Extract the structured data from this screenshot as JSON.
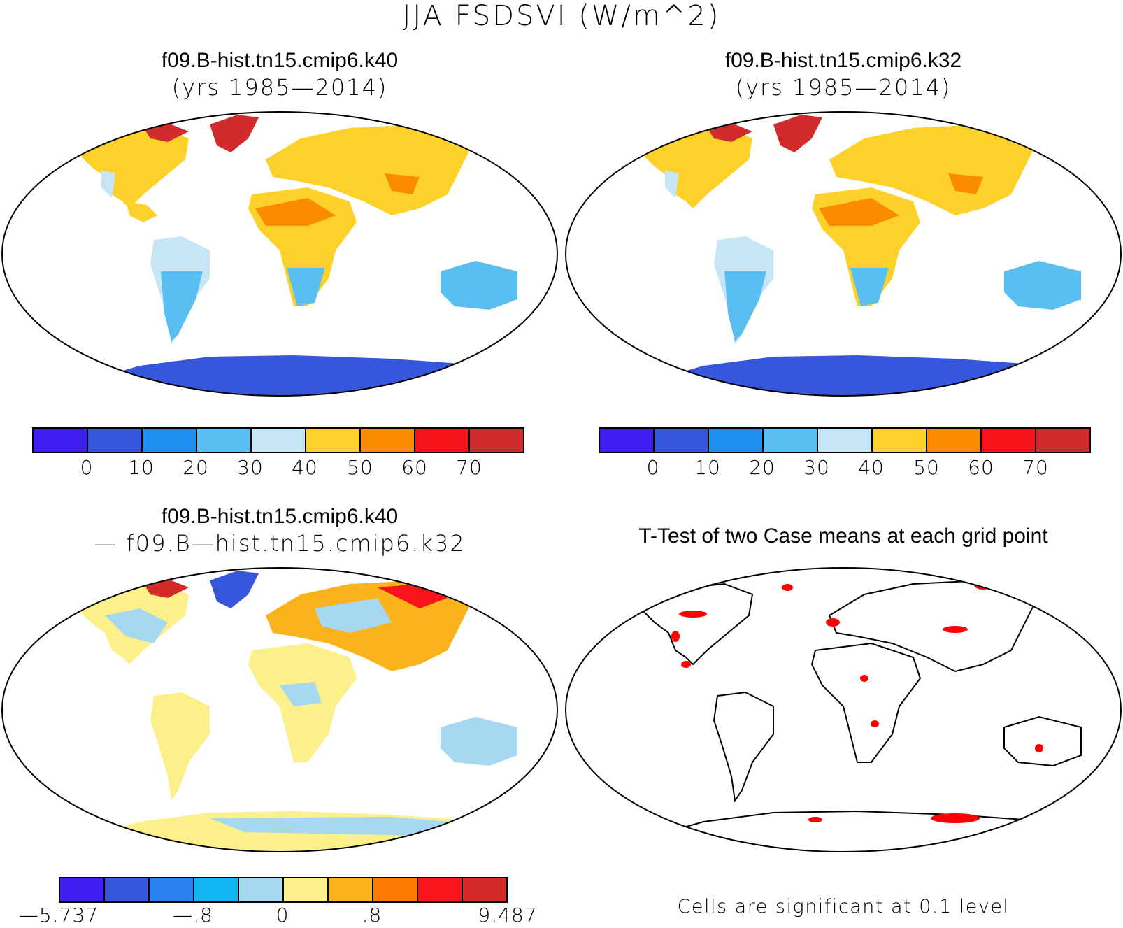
{
  "title": "JJA FSDSVI (W/m^2)",
  "panels": {
    "case1": {
      "name": "f09.B-hist.tn15.cmip6.k40",
      "years": "(yrs 1985—2014)"
    },
    "case2": {
      "name": "f09.B-hist.tn15.cmip6.k32",
      "years": "(yrs 1985—2014)"
    },
    "diff": {
      "name": "f09.B-hist.tn15.cmip6.k40",
      "subtitle": "— f09.B—hist.tn15.cmip6.k32"
    },
    "ttest": {
      "name": "T-Test of two Case means at each grid point",
      "note": "Cells are significant at 0.1 level"
    }
  },
  "colorbar_main": {
    "colors": [
      "#3e1ff0",
      "#3656dc",
      "#1f8ff0",
      "#58bff0",
      "#c6e6f6",
      "#fdd02a",
      "#fb8c00",
      "#f5141c",
      "#d22b2b"
    ],
    "labels": [
      "0",
      "10",
      "20",
      "30",
      "40",
      "50",
      "60",
      "70"
    ]
  },
  "colorbar_diff": {
    "colors": [
      "#3e1ff0",
      "#3656dc",
      "#2a82f0",
      "#12b6f2",
      "#a6d8f2",
      "#fcf08a",
      "#fbb31c",
      "#fb7a00",
      "#f7141a",
      "#d42a2a"
    ],
    "labels": [
      "—5.737",
      "—.8",
      "0",
      ".8",
      "9.487"
    ]
  },
  "significance_color": "#ff0000",
  "map_frame_color": "#000000"
}
